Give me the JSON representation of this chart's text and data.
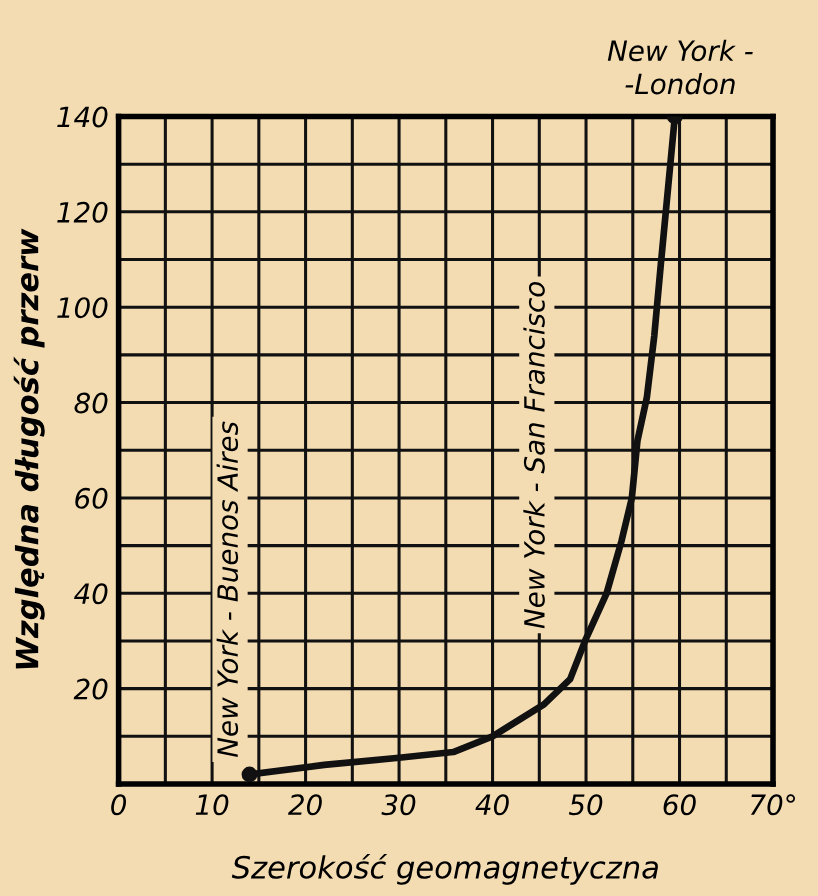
{
  "chart_data": {
    "type": "line",
    "xlabel": "Szerokość geomagnetyczna",
    "ylabel": "Względna długość przerw",
    "xlim": [
      0,
      70
    ],
    "ylim": [
      0,
      140
    ],
    "xticks": [
      0,
      {
        "value": 5,
        "label": null
      },
      10,
      {
        "value": 15,
        "label": null
      },
      20,
      {
        "value": 25,
        "label": null
      },
      30,
      {
        "value": 35,
        "label": null
      },
      40,
      {
        "value": 45,
        "label": null
      },
      50,
      {
        "value": 55,
        "label": null
      },
      60,
      {
        "value": 65,
        "label": null
      },
      {
        "value": 70,
        "label": "70°"
      }
    ],
    "yticks": [
      {
        "value": 0,
        "label": null
      },
      {
        "value": 10,
        "label": null
      },
      20,
      {
        "value": 30,
        "label": null
      },
      40,
      {
        "value": 50,
        "label": null
      },
      60,
      {
        "value": 70,
        "label": null
      },
      80,
      {
        "value": 90,
        "label": null
      },
      100,
      {
        "value": 110,
        "label": null
      },
      120,
      {
        "value": 130,
        "label": null
      },
      140
    ],
    "grid": true,
    "series": [
      {
        "color": "#111111",
        "marker": "none",
        "x": [
          14,
          22,
          30,
          35.8,
          40,
          45.5,
          48.3,
          50,
          52.2,
          53.8,
          54.9,
          55.5,
          56.5,
          57.3,
          58,
          59.5
        ],
        "values": [
          2,
          4,
          5.5,
          6.7,
          10,
          16.7,
          22,
          30.5,
          40,
          51,
          60,
          72,
          81,
          94,
          109,
          140
        ]
      },
      {
        "type": "scatter",
        "color": "#111111",
        "marker": "circle",
        "x": [
          14,
          59.5
        ],
        "values": [
          2,
          140
        ]
      }
    ],
    "annotations": [
      {
        "text": "New York - Buenos Aires",
        "x": 14,
        "y": 2
      },
      {
        "text": "New York - San Francisco",
        "x": 48.3,
        "y": 22
      },
      {
        "text": "New York -\n-London",
        "x": 59.5,
        "y": 140
      }
    ]
  }
}
